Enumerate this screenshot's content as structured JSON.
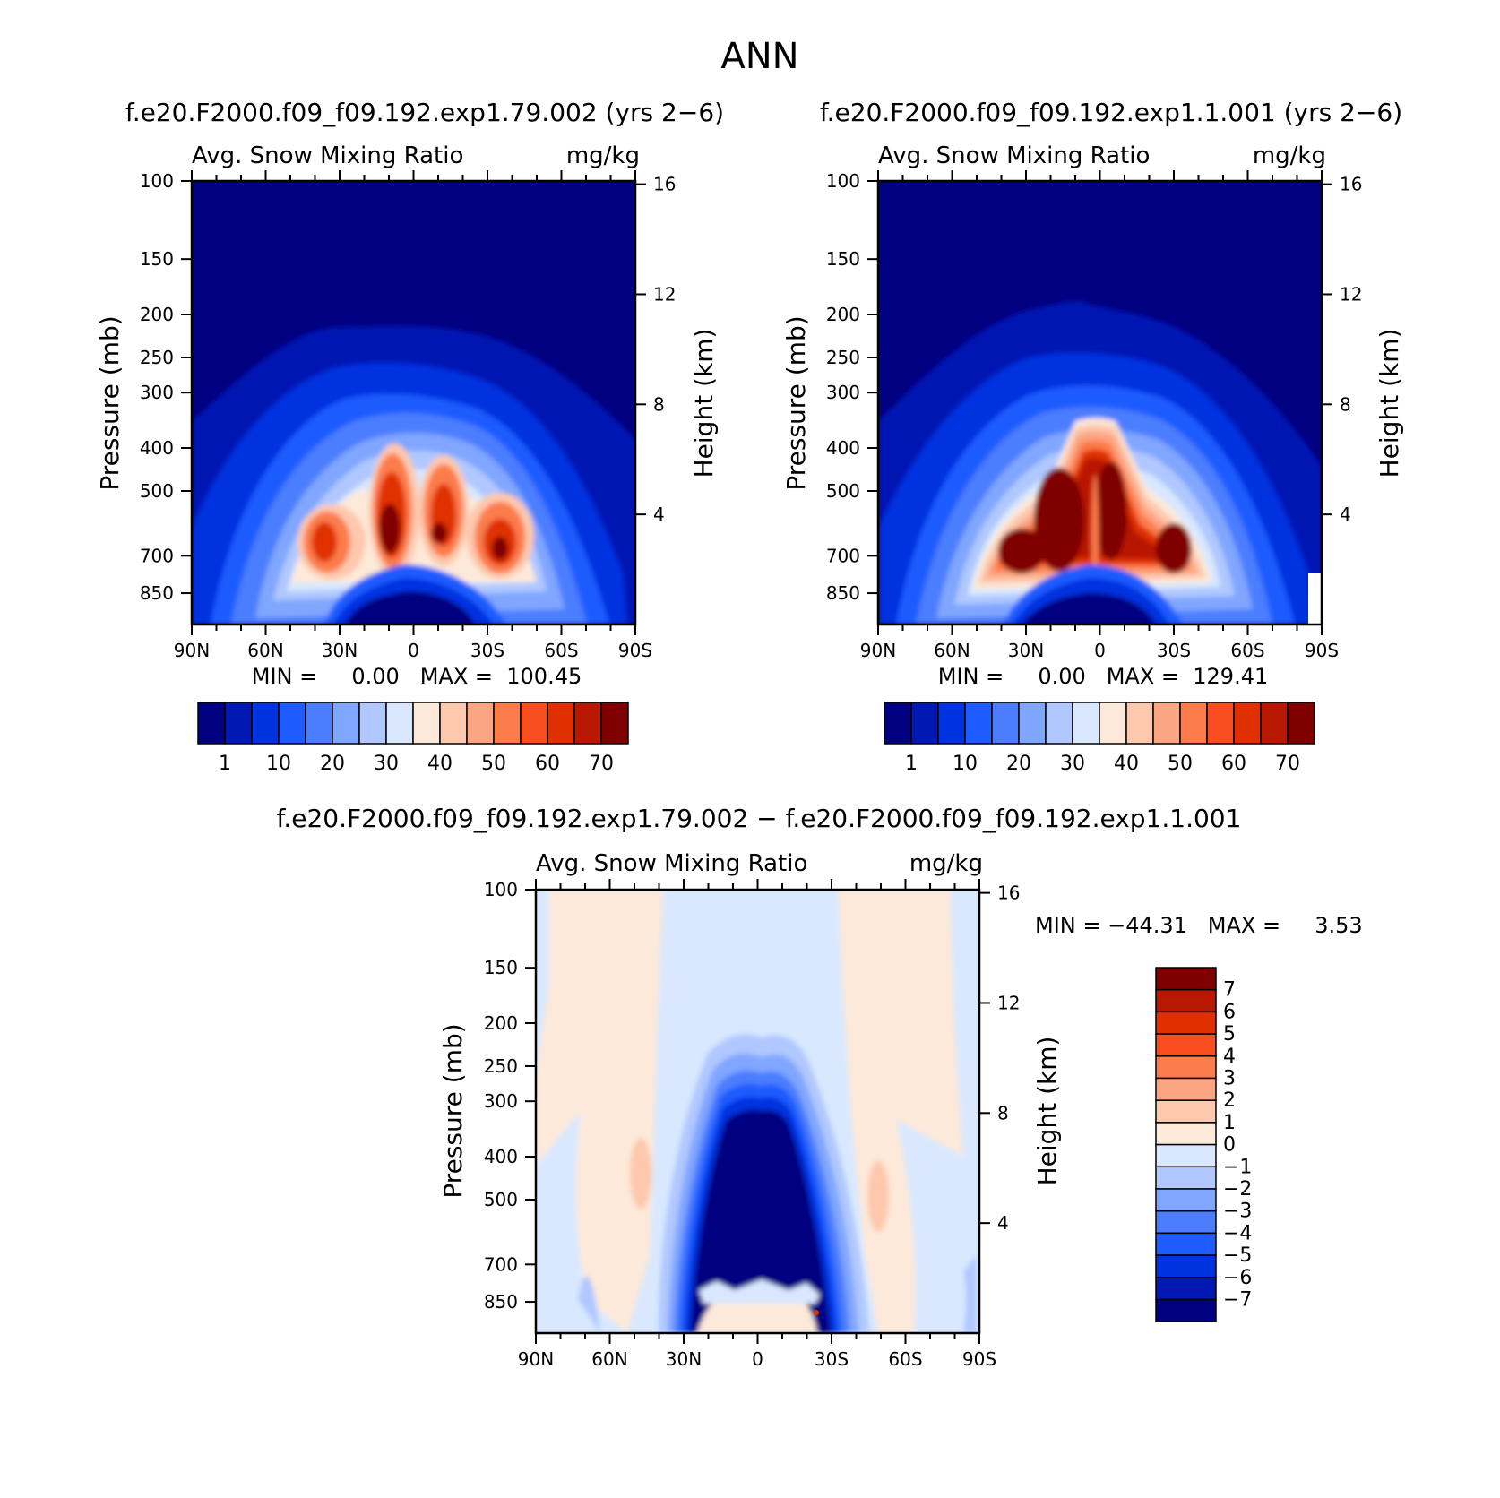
{
  "page": {
    "title": "ANN"
  },
  "colors": {
    "palette": [
      "#000080",
      "#0019b3",
      "#0033e0",
      "#1f5cff",
      "#4c7dff",
      "#80a6ff",
      "#b0c8ff",
      "#d9e8ff",
      "#fde9d9",
      "#fdc8ad",
      "#fca582",
      "#fc7c4c",
      "#f84d1f",
      "#e03000",
      "#b81800",
      "#800000"
    ]
  },
  "chart_data": [
    {
      "type": "heatmap",
      "title": "f.e20.F2000.f09_f09.192.exp1.79.002 (yrs 2−6)",
      "variable": "Avg. Snow Mixing Ratio",
      "units": "mg/kg",
      "ylabel": "Pressure (mb)",
      "y2label": "Height (km)",
      "x_ticks": [
        "90N",
        "60N",
        "30N",
        "0",
        "30S",
        "60S",
        "90S"
      ],
      "x_range": [
        90,
        -90
      ],
      "y_ticks": [
        100,
        150,
        200,
        250,
        300,
        400,
        500,
        700,
        850
      ],
      "y_range": [
        100,
        1000
      ],
      "y_scale": "log",
      "y2_ticks": [
        16,
        12,
        8,
        4
      ],
      "min": "0.00",
      "max": "100.45",
      "stats_text": "MIN =     0.00   MAX =  100.45",
      "colorbar": {
        "orientation": "horizontal",
        "levels": [
          1,
          5,
          10,
          15,
          20,
          25,
          30,
          35,
          40,
          45,
          50,
          55,
          60,
          65,
          70
        ],
        "labels": [
          "1",
          "10",
          "20",
          "30",
          "40",
          "50",
          "60",
          "70"
        ]
      },
      "grid": false
    },
    {
      "type": "heatmap",
      "title": "f.e20.F2000.f09_f09.192.exp1.1.001 (yrs 2−6)",
      "variable": "Avg. Snow Mixing Ratio",
      "units": "mg/kg",
      "ylabel": "Pressure (mb)",
      "y2label": "Height (km)",
      "x_ticks": [
        "90N",
        "60N",
        "30N",
        "0",
        "30S",
        "60S",
        "90S"
      ],
      "x_range": [
        90,
        -90
      ],
      "y_ticks": [
        100,
        150,
        200,
        250,
        300,
        400,
        500,
        700,
        850
      ],
      "y_range": [
        100,
        1000
      ],
      "y_scale": "log",
      "y2_ticks": [
        16,
        12,
        8,
        4
      ],
      "min": "0.00",
      "max": "129.41",
      "stats_text": "MIN =     0.00   MAX =  129.41",
      "colorbar": {
        "orientation": "horizontal",
        "levels": [
          1,
          5,
          10,
          15,
          20,
          25,
          30,
          35,
          40,
          45,
          50,
          55,
          60,
          65,
          70
        ],
        "labels": [
          "1",
          "10",
          "20",
          "30",
          "40",
          "50",
          "60",
          "70"
        ]
      },
      "grid": false
    },
    {
      "type": "heatmap",
      "title": "f.e20.F2000.f09_f09.192.exp1.79.002 − f.e20.F2000.f09_f09.192.exp1.1.001",
      "variable": "Avg. Snow Mixing Ratio",
      "units": "mg/kg",
      "ylabel": "Pressure (mb)",
      "y2label": "Height (km)",
      "x_ticks": [
        "90N",
        "60N",
        "30N",
        "0",
        "30S",
        "60S",
        "90S"
      ],
      "x_range": [
        90,
        -90
      ],
      "y_ticks": [
        100,
        150,
        200,
        250,
        300,
        400,
        500,
        700,
        850
      ],
      "y_range": [
        100,
        1000
      ],
      "y_scale": "log",
      "y2_ticks": [
        16,
        12,
        8,
        4
      ],
      "min": "−44.31",
      "max": "3.53",
      "stats_text": "MIN = −44.31   MAX =     3.53",
      "colorbar": {
        "orientation": "vertical",
        "levels": [
          7,
          6,
          5,
          4,
          3,
          2,
          1,
          0,
          -1,
          -2,
          -3,
          -4,
          -5,
          -6,
          -7
        ],
        "labels": [
          "7",
          "6",
          "5",
          "4",
          "3",
          "2",
          "1",
          "0",
          "−1",
          "−2",
          "−3",
          "−4",
          "−5",
          "−6",
          "−7"
        ]
      },
      "grid": false
    }
  ]
}
